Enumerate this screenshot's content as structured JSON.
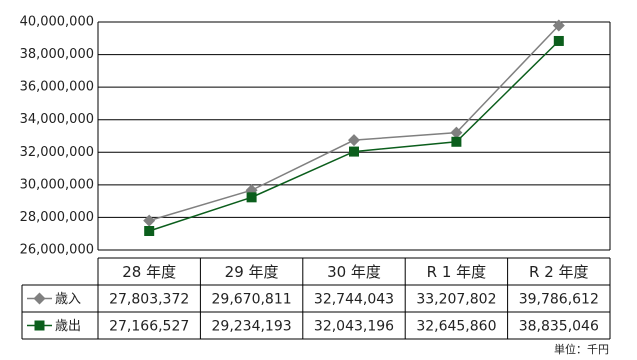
{
  "chart_data": {
    "type": "line",
    "categories": [
      "28 年度",
      "29 年度",
      "30 年度",
      "R 1 年度",
      "R 2 年度"
    ],
    "series": [
      {
        "name": "歳入",
        "color": "#808080",
        "marker": "diamond",
        "values": [
          27803372,
          29670811,
          32744043,
          33207802,
          39786612
        ],
        "value_labels": [
          "27,803,372",
          "29,670,811",
          "32,744,043",
          "33,207,802",
          "39,786,612"
        ]
      },
      {
        "name": "歳出",
        "color": "#0b5e1c",
        "marker": "square",
        "values": [
          27166527,
          29234193,
          32043196,
          32645860,
          38835046
        ],
        "value_labels": [
          "27,166,527",
          "29,234,193",
          "32,043,196",
          "32,645,860",
          "38,835,046"
        ]
      }
    ],
    "ylim": [
      26000000,
      40000000
    ],
    "yticks": [
      {
        "value": 26000000,
        "label": "26,000,000"
      },
      {
        "value": 28000000,
        "label": "28,000,000"
      },
      {
        "value": 30000000,
        "label": "30,000,000"
      },
      {
        "value": 32000000,
        "label": "32,000,000"
      },
      {
        "value": 34000000,
        "label": "34,000,000"
      },
      {
        "value": 36000000,
        "label": "36,000,000"
      },
      {
        "value": 38000000,
        "label": "38,000,000"
      },
      {
        "value": 40000000,
        "label": "40,000,000"
      }
    ],
    "grid": true,
    "unit_note": "単位：千円"
  }
}
